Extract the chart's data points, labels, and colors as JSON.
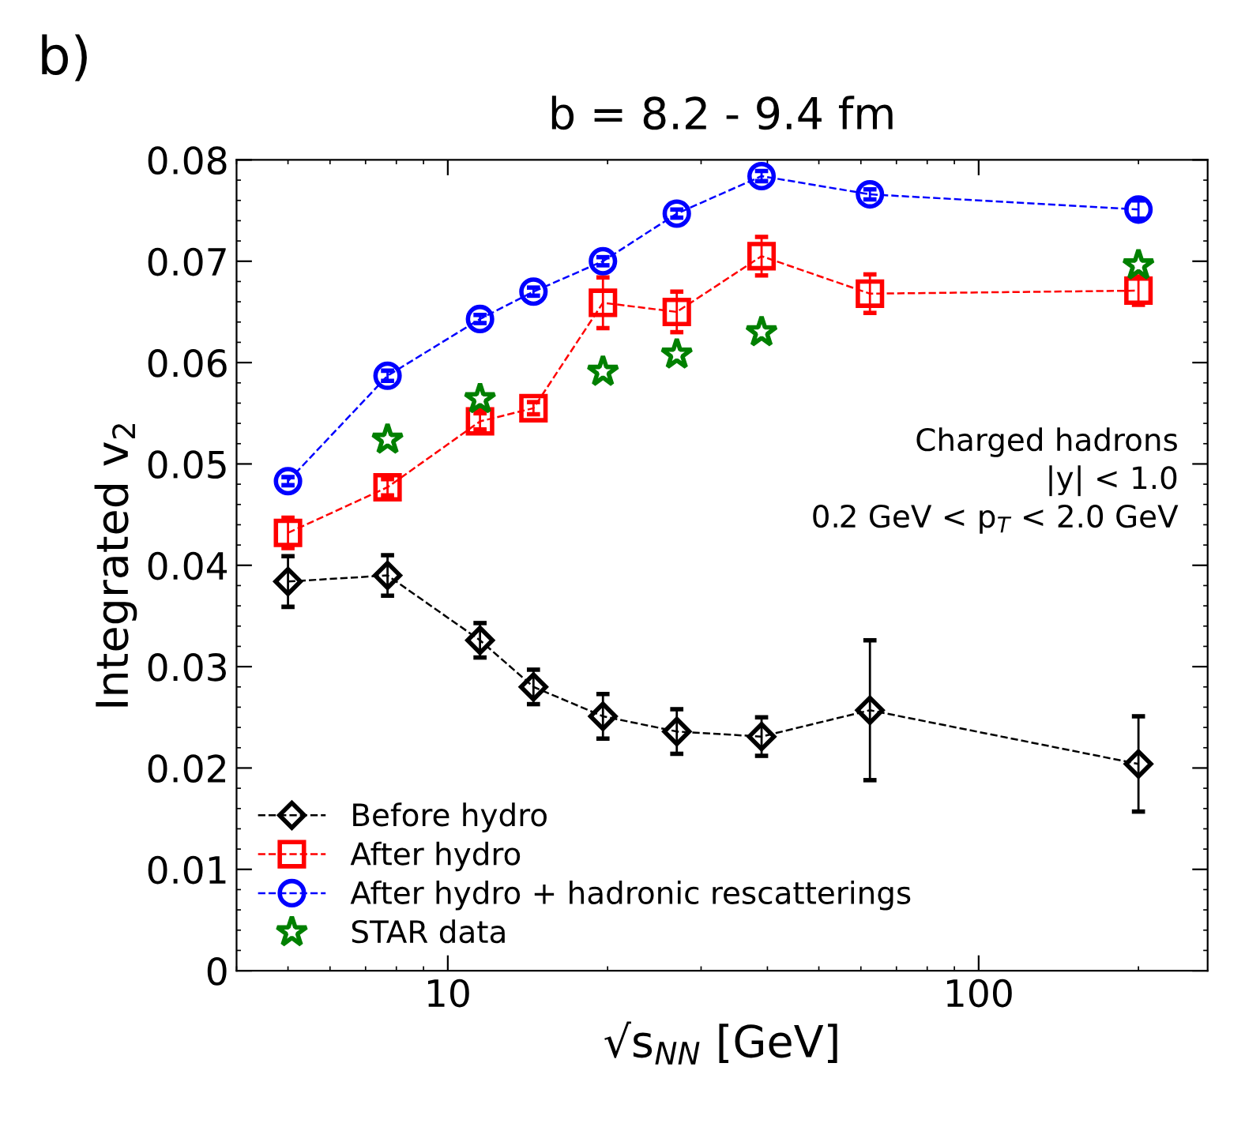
{
  "chart_data": {
    "type": "line",
    "title": "b = 8.2 - 9.4 fm",
    "xlabel": "√s$_{NN}$ [GeV]",
    "ylabel": "Integrated v$_{2}$",
    "annotations": [
      "b)",
      "Charged hadrons\n|y| < 1.0\n0.2 GeV < p$_{T}$ < 2.0 GeV"
    ],
    "log": "x",
    "xlim": [
      4,
      270
    ],
    "xticks": [
      10,
      100
    ],
    "ylim": [
      0,
      0.08
    ],
    "yticks": [
      0,
      0.01,
      0.02,
      0.03,
      0.04,
      0.05,
      0.06,
      0.07,
      0.08
    ],
    "grid": false,
    "legend": "bottom left",
    "line_style": "dashed",
    "series": [
      {
        "name": "Before hydro",
        "color": "#000000",
        "marker": "diamond",
        "x": [
          5,
          7.7,
          11.5,
          14.5,
          19.6,
          27,
          39,
          62.4,
          200
        ],
        "values": [
          0.0384,
          0.039,
          0.0326,
          0.028,
          0.0251,
          0.0236,
          0.0231,
          0.0257,
          0.0204
        ],
        "errors": [
          0.0025,
          0.002,
          0.0017,
          0.0017,
          0.0022,
          0.0022,
          0.0019,
          0.0069,
          0.0047
        ]
      },
      {
        "name": "After hydro",
        "color": "#ff0000",
        "marker": "square",
        "x": [
          5,
          7.7,
          11.5,
          14.5,
          19.6,
          27,
          39,
          62.4,
          200
        ],
        "values": [
          0.0432,
          0.0477,
          0.0542,
          0.0555,
          0.0659,
          0.065,
          0.0705,
          0.0668,
          0.0671
        ],
        "errors": [
          0.0015,
          0.0008,
          0.0008,
          0.0006,
          0.0025,
          0.002,
          0.0019,
          0.0019,
          0.0014
        ]
      },
      {
        "name": "After hydro + hadronic rescatterings",
        "color": "#0000ff",
        "marker": "circle",
        "x": [
          5,
          7.7,
          11.5,
          14.5,
          19.6,
          27,
          39,
          62.4,
          200
        ],
        "values": [
          0.0483,
          0.0587,
          0.0643,
          0.067,
          0.07,
          0.0747,
          0.0784,
          0.0766,
          0.0751
        ],
        "errors": [
          0.0004,
          0.0005,
          0.0004,
          0.0004,
          0.0004,
          0.0004,
          0.0005,
          0.0005,
          0.0009
        ]
      },
      {
        "name": "STAR data",
        "color": "#008000",
        "marker": "star",
        "type": "scatter",
        "x": [
          7.7,
          11.5,
          19.6,
          27,
          39,
          200
        ],
        "values": [
          0.0524,
          0.0564,
          0.0591,
          0.0608,
          0.063,
          0.0696
        ]
      }
    ]
  }
}
